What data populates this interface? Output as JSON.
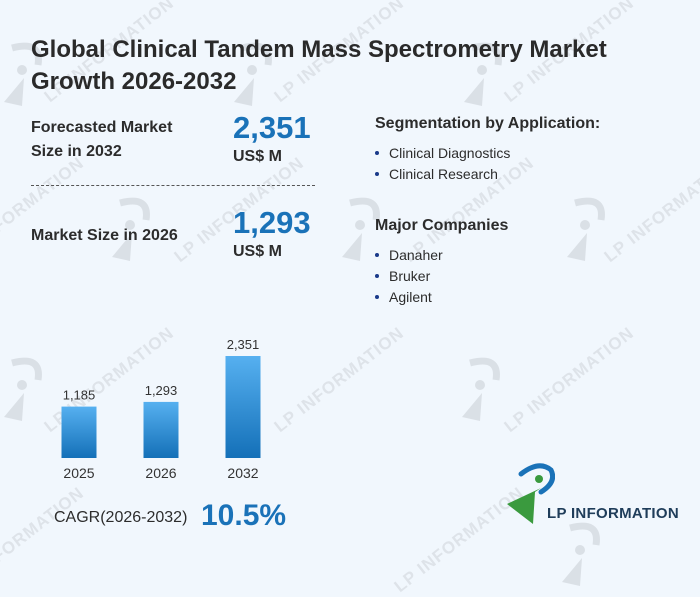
{
  "title": "Global Clinical Tandem Mass Spectrometry Market Growth 2026-2032",
  "forecast": {
    "label_line1": "Forecasted Market",
    "label_line2": "Size in 2032",
    "value": "2,351",
    "unit": "US$ M"
  },
  "current": {
    "label": "Market Size in 2026",
    "value": "1,293",
    "unit": "US$ M"
  },
  "segmentation": {
    "heading": "Segmentation by Application:",
    "items": [
      "Clinical Diagnostics",
      "Clinical Research"
    ]
  },
  "companies": {
    "heading": "Major Companies",
    "items": [
      "Danaher",
      "Bruker",
      "Agilent"
    ]
  },
  "cagr": {
    "label": "CAGR(2026-2032)",
    "value": "10.5%"
  },
  "brand": {
    "name": "LP INFORMATION",
    "watermark": "LP INFORMATION",
    "primary": "#1a72b8",
    "green": "#3a9a3e"
  },
  "chart_data": {
    "type": "bar",
    "title": "",
    "xlabel": "",
    "ylabel": "",
    "categories": [
      "2025",
      "2026",
      "2032"
    ],
    "values": [
      1185,
      1293,
      2351
    ],
    "value_labels": [
      "1,185",
      "1,293",
      "2,351"
    ],
    "ylim": [
      0,
      2351
    ],
    "grid": false,
    "legend": "none",
    "bar_color_top": "#56b0f0",
    "bar_color_bottom": "#1470b8"
  }
}
